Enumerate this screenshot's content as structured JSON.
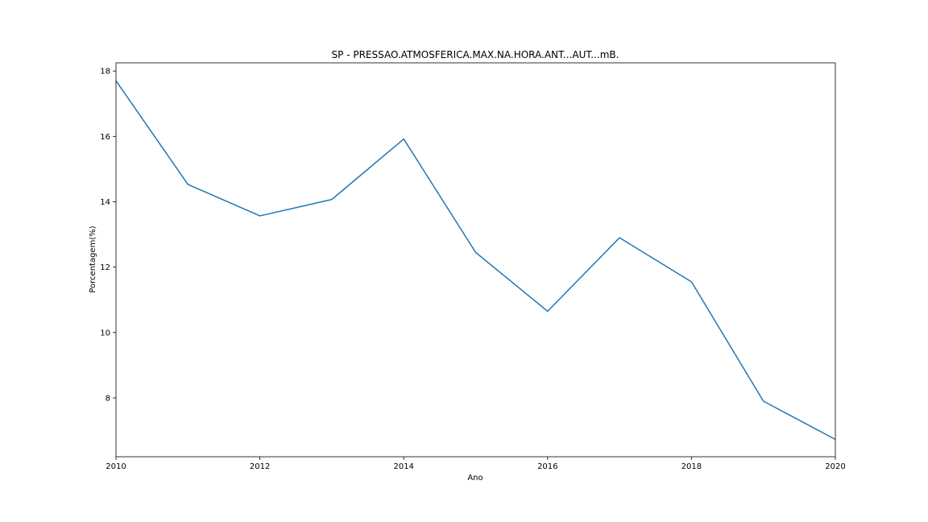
{
  "chart_data": {
    "type": "line",
    "title": "SP - PRESSAO.ATMOSFERICA.MAX.NA.HORA.ANT...AUT...mB.",
    "xlabel": "Ano",
    "ylabel": "Porcentagem(%)",
    "x": [
      2010,
      2011,
      2012,
      2013,
      2014,
      2015,
      2016,
      2017,
      2018,
      2019,
      2020
    ],
    "series": [
      {
        "values": [
          17.7,
          14.53,
          13.57,
          14.07,
          15.92,
          12.45,
          10.65,
          12.9,
          11.55,
          7.9,
          6.73
        ]
      }
    ],
    "xlim": [
      2010,
      2020
    ],
    "ylim": [
      6.2,
      18.25
    ],
    "xticks": [
      2010,
      2012,
      2014,
      2016,
      2018,
      2020
    ],
    "yticks": [
      8,
      10,
      12,
      14,
      16,
      18
    ],
    "line_color": "#1f77b4",
    "grid": false,
    "legend": "none"
  }
}
